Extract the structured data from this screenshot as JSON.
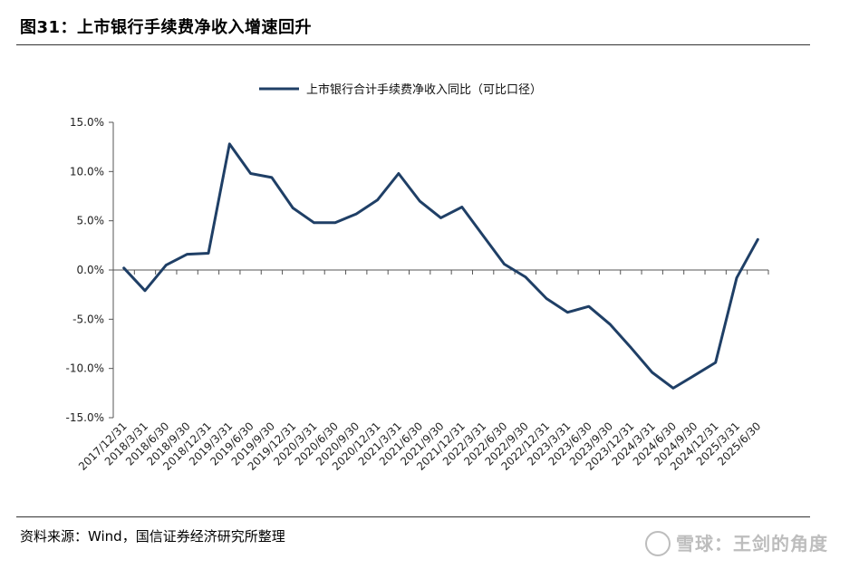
{
  "figure": {
    "title": "图31：上市银行手续费净收入增速回升",
    "source": "资料来源：Wind，国信证券经济研究所整理",
    "watermark": "雪球：王剑的角度"
  },
  "colors": {
    "series": "#1f3f66",
    "axis": "#555555"
  },
  "chart_data": {
    "type": "line",
    "title": "",
    "xlabel": "",
    "ylabel": "",
    "ylim": [
      -15,
      15
    ],
    "yticks": [
      15,
      10,
      5,
      0,
      -5,
      -10,
      -15
    ],
    "ytick_labels": [
      "15.0%",
      "10.0%",
      "5.0%",
      "0.0%",
      "-5.0%",
      "-10.0%",
      "-15.0%"
    ],
    "legend": "top-center",
    "categories": [
      "2017/12/31",
      "2018/3/31",
      "2018/6/30",
      "2018/9/30",
      "2018/12/31",
      "2019/3/31",
      "2019/6/30",
      "2019/9/30",
      "2019/12/31",
      "2020/3/31",
      "2020/6/30",
      "2020/9/30",
      "2020/12/31",
      "2021/3/31",
      "2021/6/30",
      "2021/9/30",
      "2021/12/31",
      "2022/3/31",
      "2022/6/30",
      "2022/9/30",
      "2022/12/31",
      "2023/3/31",
      "2023/6/30",
      "2023/9/30",
      "2023/12/31",
      "2024/3/31",
      "2024/6/30",
      "2024/9/30",
      "2024/12/31",
      "2025/3/31",
      "2025/6/30"
    ],
    "series": [
      {
        "name": "上市银行合计手续费净收入同比（可比口径）",
        "values": [
          0.2,
          -2.1,
          0.5,
          1.6,
          1.7,
          12.8,
          9.8,
          9.4,
          6.3,
          4.8,
          4.8,
          5.7,
          7.1,
          9.8,
          7.0,
          5.3,
          6.4,
          3.5,
          0.6,
          -0.7,
          -2.9,
          -4.3,
          -3.7,
          -5.5,
          -7.9,
          -10.4,
          -12.0,
          -10.7,
          -9.4,
          -0.8,
          3.1
        ]
      }
    ]
  }
}
